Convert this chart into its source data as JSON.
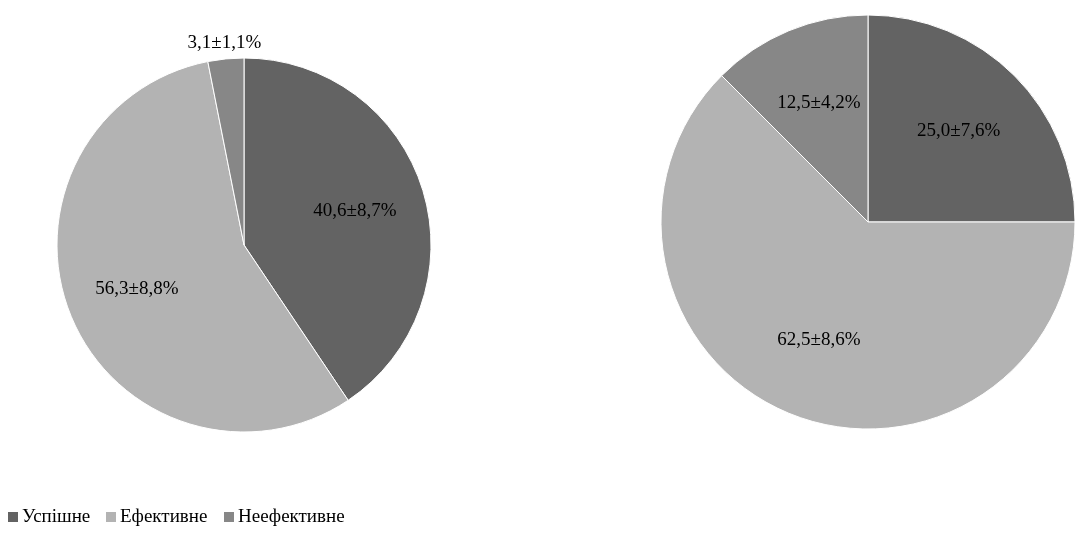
{
  "chart_data": [
    {
      "type": "pie",
      "categories": [
        "Успішне",
        "Ефективне",
        "Неефективне"
      ],
      "values": [
        40.6,
        56.3,
        3.1
      ],
      "colors": [
        "#636363",
        "#b3b3b3",
        "#878787"
      ],
      "value_labels": [
        "40,6±8,7%",
        "56,3±8,8%",
        "3,1±1,1%"
      ],
      "legend": "bottom left"
    },
    {
      "type": "pie",
      "categories": [
        null,
        null,
        null
      ],
      "values": [
        25.0,
        62.5,
        12.5
      ],
      "colors": [
        "#636363",
        "#b3b3b3",
        "#878787"
      ],
      "value_labels": [
        "25,0±7,6%",
        "62,5±8,6%",
        "12,5±4,2%"
      ]
    }
  ]
}
